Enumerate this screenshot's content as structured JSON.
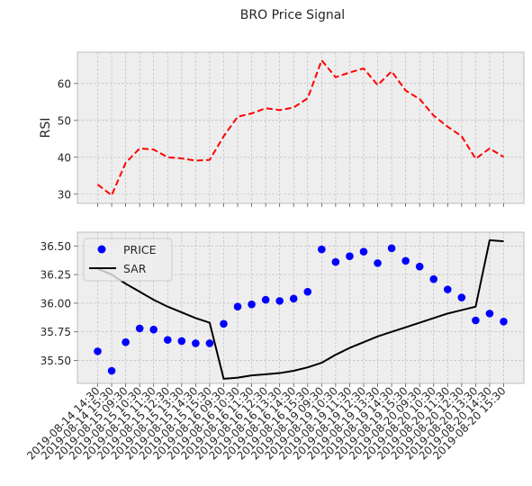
{
  "chart_data": {
    "title": "BRO Price Signal",
    "x": [
      "2019-08-14 14:30",
      "2019-08-14 15:30",
      "2019-08-15 09:30",
      "2019-08-15 10:30",
      "2019-08-15 11:30",
      "2019-08-15 12:30",
      "2019-08-15 13:30",
      "2019-08-15 14:30",
      "2019-08-15 15:30",
      "2019-08-16 09:30",
      "2019-08-16 10:30",
      "2019-08-16 11:30",
      "2019-08-16 12:30",
      "2019-08-16 13:30",
      "2019-08-16 14:30",
      "2019-08-16 15:30",
      "2019-08-19 09:30",
      "2019-08-19 10:30",
      "2019-08-19 11:30",
      "2019-08-19 12:30",
      "2019-08-19 13:30",
      "2019-08-19 14:30",
      "2019-08-19 15:30",
      "2019-08-20 09:30",
      "2019-08-20 10:30",
      "2019-08-20 11:30",
      "2019-08-20 12:30",
      "2019-08-20 13:30",
      "2019-08-20 14:30",
      "2019-08-20 15:30"
    ],
    "panels": [
      {
        "type": "line",
        "ylabel": "RSI",
        "yticks": [
          30,
          40,
          50,
          60
        ],
        "ylim": [
          27.5,
          68.5
        ],
        "grid": true,
        "series": [
          {
            "name": "",
            "color": "#ff0000",
            "style": "dashed",
            "values": [
              32.6,
              29.7,
              38.5,
              42.4,
              42.1,
              40.0,
              39.7,
              39.1,
              39.3,
              45.7,
              51.0,
              51.9,
              53.3,
              52.8,
              53.5,
              56.0,
              66.3,
              61.7,
              63.0,
              64.1,
              59.6,
              63.3,
              58.1,
              55.8,
              51.3,
              48.3,
              45.7,
              39.6,
              42.4,
              40.1
            ]
          }
        ]
      },
      {
        "type": "scatter+line",
        "ylabel": "",
        "yticks": [
          35.5,
          35.75,
          36.0,
          36.25,
          36.5
        ],
        "ytick_labels": [
          "35.50",
          "35.75",
          "36.00",
          "36.25",
          "36.50"
        ],
        "ylim": [
          35.3,
          36.62
        ],
        "grid": true,
        "legend": {
          "placement": "top-left"
        },
        "series": [
          {
            "name": "PRICE",
            "type": "scatter",
            "color": "#0000ff",
            "values": [
              35.58,
              35.41,
              35.66,
              35.78,
              35.77,
              35.68,
              35.67,
              35.65,
              35.65,
              35.82,
              35.97,
              35.99,
              36.03,
              36.02,
              36.04,
              36.1,
              36.47,
              36.36,
              36.41,
              36.45,
              36.35,
              36.48,
              36.37,
              36.32,
              36.21,
              36.12,
              36.05,
              35.85,
              35.91,
              35.84
            ]
          },
          {
            "name": "SAR",
            "type": "line",
            "color": "#000000",
            "values": [
              36.3,
              36.25,
              36.17,
              36.1,
              36.03,
              35.97,
              35.92,
              35.87,
              35.83,
              35.34,
              35.35,
              35.37,
              35.38,
              35.39,
              35.41,
              35.44,
              35.48,
              35.55,
              35.61,
              35.66,
              35.71,
              35.75,
              35.79,
              35.83,
              35.87,
              35.91,
              35.94,
              35.97,
              36.55,
              36.54
            ]
          }
        ]
      }
    ]
  }
}
